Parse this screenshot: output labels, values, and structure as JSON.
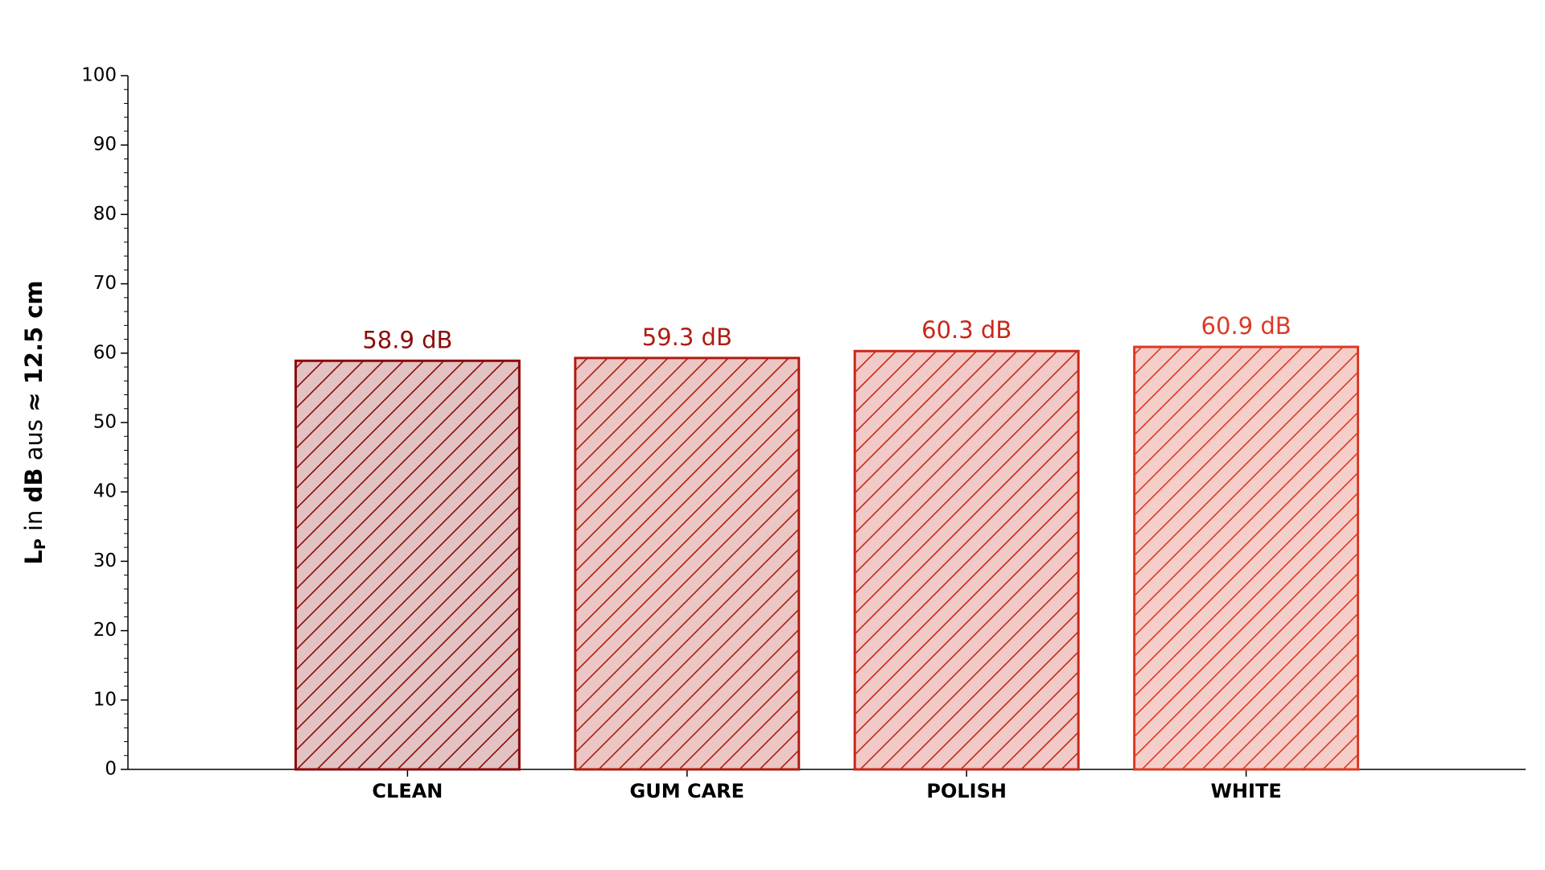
{
  "chart_data": {
    "type": "bar",
    "y_label": [
      "L",
      "P",
      " in ",
      "dB",
      " aus ",
      "≈ 12.5 cm"
    ],
    "categories": [
      "CLEAN",
      "GUM CARE",
      "POLISH",
      "WHITE"
    ],
    "values": [
      58.9,
      59.3,
      60.3,
      60.9
    ],
    "value_labels": [
      "58.9 dB",
      "59.3 dB",
      "60.3 dB",
      "60.9 dB"
    ],
    "colors": [
      "#8b0a0a",
      "#b01c12",
      "#c8281a",
      "#dc3a26"
    ],
    "ylim": [
      0,
      100
    ],
    "yticks": [
      0,
      10,
      20,
      30,
      40,
      50,
      60,
      70,
      80,
      90,
      100
    ],
    "hatch": "/",
    "grid": false
  }
}
